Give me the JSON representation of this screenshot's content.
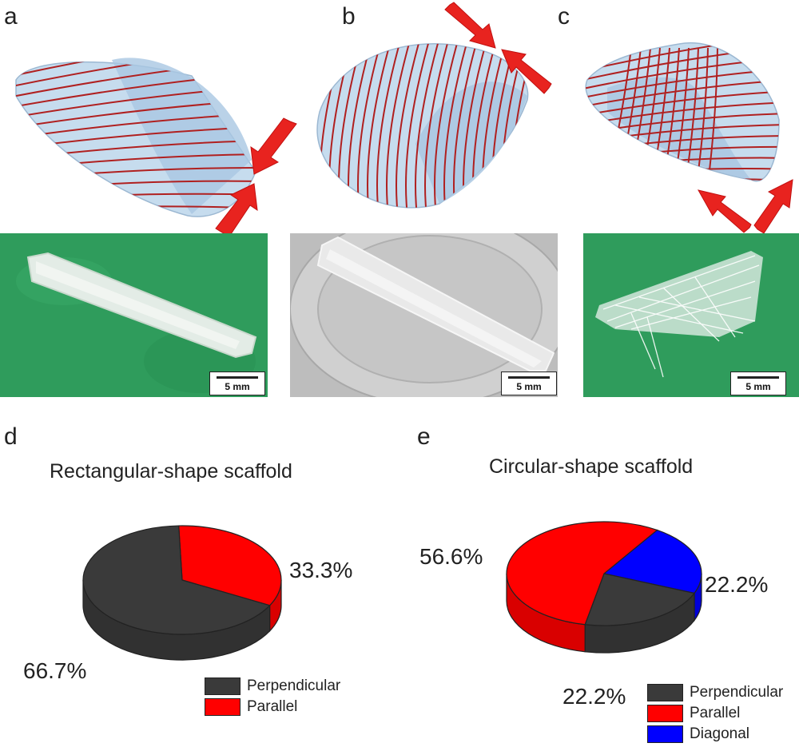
{
  "panels": {
    "a": {
      "label": "a",
      "scale_text": "5 mm"
    },
    "b": {
      "label": "b",
      "scale_text": "5 mm"
    },
    "c": {
      "label": "c",
      "scale_text": "5 mm"
    },
    "d": {
      "label": "d"
    },
    "e": {
      "label": "e"
    }
  },
  "colors": {
    "perpendicular": "#3a3a3a",
    "parallel": "#ff0000",
    "diagonal": "#0000ff",
    "fiber": "#b02020",
    "sheet": "#b8d4ea",
    "arrow": "#e8231f",
    "green_bg": "#2e9e5e",
    "clear_bg": "#c8c8c8"
  },
  "chart_data": [
    {
      "type": "pie",
      "title": "Rectangular-shape scaffold",
      "slices": [
        {
          "name": "Perpendicular",
          "value": 66.7,
          "label": "66.7%",
          "color": "#3a3a3a"
        },
        {
          "name": "Parallel",
          "value": 33.3,
          "label": "33.3%",
          "color": "#ff0000"
        }
      ],
      "legend": [
        "Perpendicular",
        "Parallel"
      ],
      "legend_position": "bottom-right"
    },
    {
      "type": "pie",
      "title": "Circular-shape scaffold",
      "slices": [
        {
          "name": "Perpendicular",
          "value": 22.2,
          "label": "22.2%",
          "color": "#3a3a3a"
        },
        {
          "name": "Parallel",
          "value": 56.6,
          "label": "56.6%",
          "color": "#ff0000"
        },
        {
          "name": "Diagonal",
          "value": 22.2,
          "label": "22.2%",
          "color": "#0000ff"
        }
      ],
      "legend": [
        "Perpendicular",
        "Parallel",
        "Diagonal"
      ],
      "legend_position": "bottom-right"
    }
  ]
}
